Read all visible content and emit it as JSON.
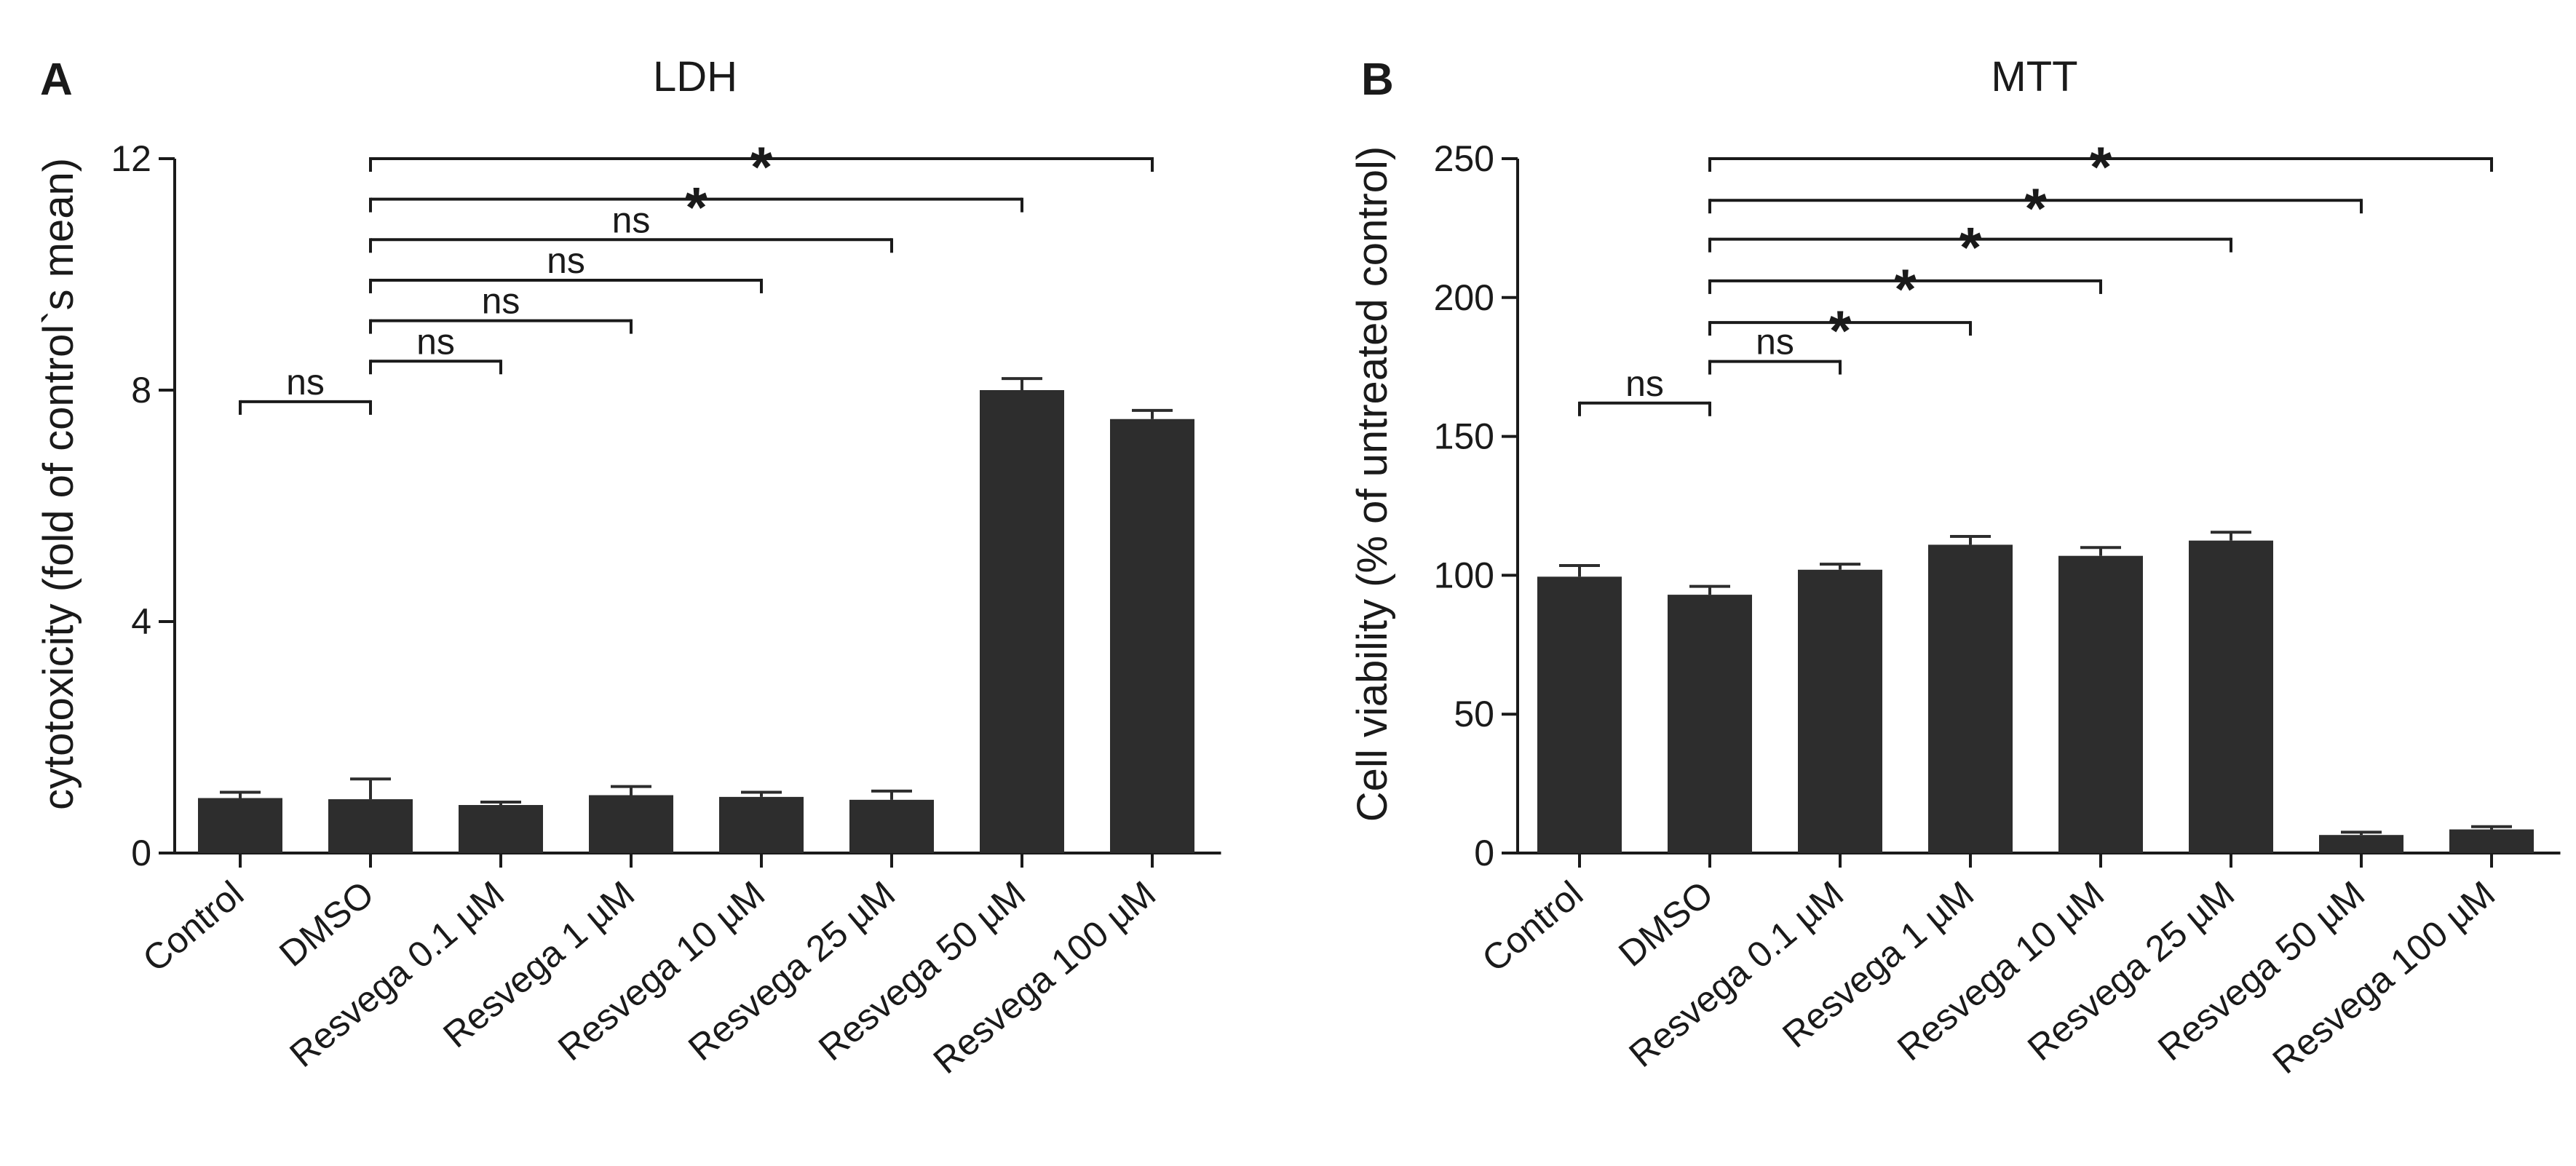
{
  "chart_data": [
    {
      "panel": "A",
      "type": "bar",
      "title": "LDH",
      "xlabel": "",
      "ylabel": "cytotoxicity (fold of control`s mean)",
      "ylim": [
        0,
        12
      ],
      "yticks": [
        0,
        4,
        8,
        12
      ],
      "categories": [
        "Control",
        "DMSO",
        "Resvega 0.1 µM",
        "Resvega 1 µM",
        "Resvega 10 µM",
        "Resvega 25 µM",
        "Resvega 50 µM",
        "Resvega 100 µM"
      ],
      "values": [
        0.95,
        0.93,
        0.83,
        1.0,
        0.97,
        0.92,
        8.0,
        7.5
      ],
      "errors": [
        0.1,
        0.35,
        0.05,
        0.15,
        0.08,
        0.15,
        0.2,
        0.15
      ],
      "comparisons": [
        {
          "from": 0,
          "to": 1,
          "label": "ns",
          "y": 7.8
        },
        {
          "from": 1,
          "to": 2,
          "label": "ns",
          "y": 8.5
        },
        {
          "from": 1,
          "to": 3,
          "label": "ns",
          "y": 9.2
        },
        {
          "from": 1,
          "to": 4,
          "label": "ns",
          "y": 9.9
        },
        {
          "from": 1,
          "to": 5,
          "label": "ns",
          "y": 10.6
        },
        {
          "from": 1,
          "to": 6,
          "label": "*",
          "y": 11.3
        },
        {
          "from": 1,
          "to": 7,
          "label": "*",
          "y": 12.0
        }
      ]
    },
    {
      "panel": "B",
      "type": "bar",
      "title": "MTT",
      "xlabel": "",
      "ylabel": "Cell viability (% of untreated control)",
      "ylim": [
        0,
        250
      ],
      "yticks": [
        0,
        50,
        100,
        150,
        200,
        250
      ],
      "categories": [
        "Control",
        "DMSO",
        "Resvega 0.1 µM",
        "Resvega 1 µM",
        "Resvega 10 µM",
        "Resvega 25 µM",
        "Resvega 50 µM",
        "Resvega 100 µM"
      ],
      "values": [
        99.5,
        93,
        102,
        111,
        107,
        112.5,
        6.5,
        8.5
      ],
      "errors": [
        4,
        3,
        2,
        3,
        3,
        3,
        1,
        1
      ],
      "comparisons": [
        {
          "from": 0,
          "to": 1,
          "label": "ns",
          "y": 162
        },
        {
          "from": 1,
          "to": 2,
          "label": "ns",
          "y": 177
        },
        {
          "from": 1,
          "to": 3,
          "label": "*",
          "y": 191
        },
        {
          "from": 1,
          "to": 4,
          "label": "*",
          "y": 206
        },
        {
          "from": 1,
          "to": 5,
          "label": "*",
          "y": 221
        },
        {
          "from": 1,
          "to": 6,
          "label": "*",
          "y": 235
        },
        {
          "from": 1,
          "to": 7,
          "label": "*",
          "y": 250
        }
      ]
    }
  ],
  "colors": {
    "bar": "#2d2d2d",
    "axis": "#1a1a1a"
  }
}
